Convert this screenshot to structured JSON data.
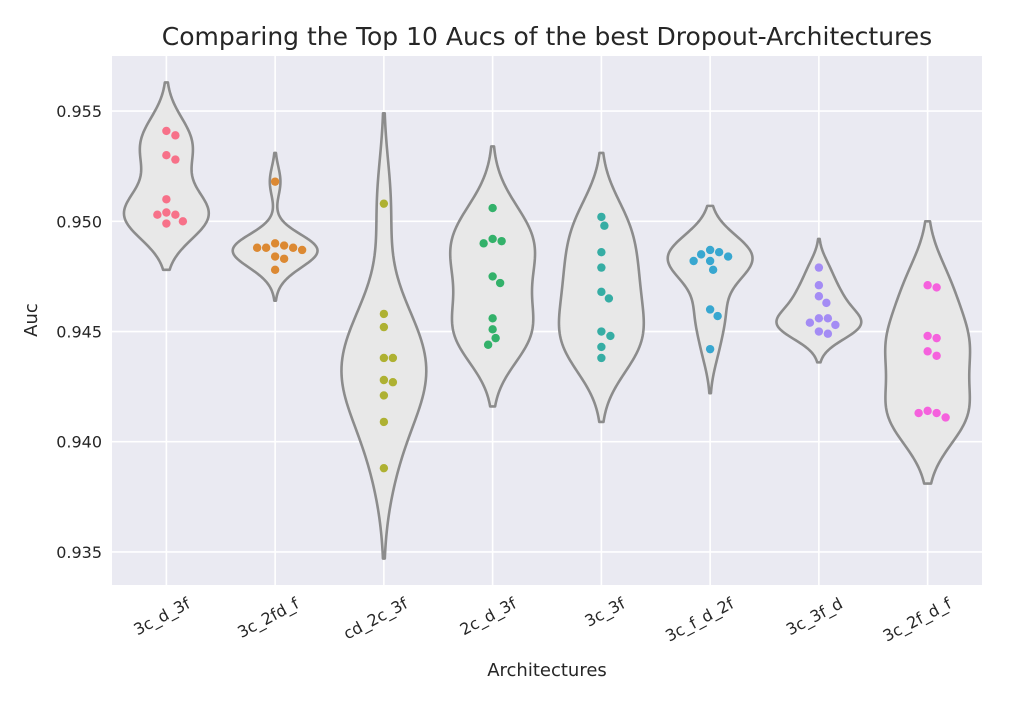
{
  "chart_data": {
    "type": "violin",
    "title": "Comparing the Top 10 Aucs of the best Dropout-Architectures",
    "xlabel": "Architectures",
    "ylabel": "Auc",
    "ylim": [
      0.9335,
      0.9575
    ],
    "yticks": [
      "0.935",
      "0.940",
      "0.945",
      "0.950",
      "0.955"
    ],
    "grid": true,
    "categories": [
      "3c_d_3f",
      "3c_2fd_f",
      "cd_2c_3f",
      "2c_d_3f",
      "3c_3f",
      "3c_f_d_2f",
      "3c_3f_d",
      "3c_2f_d_f"
    ],
    "series": [
      {
        "category": "3c_d_3f",
        "color": "#f77189",
        "violin_range": [
          0.9478,
          0.9563
        ],
        "values": [
          0.9541,
          0.9539,
          0.953,
          0.9528,
          0.951,
          0.9504,
          0.9503,
          0.9503,
          0.95,
          0.9499
        ]
      },
      {
        "category": "3c_2fd_f",
        "color": "#dc8932",
        "violin_range": [
          0.9464,
          0.9531
        ],
        "values": [
          0.9518,
          0.949,
          0.9489,
          0.9488,
          0.9488,
          0.9488,
          0.9487,
          0.9484,
          0.9483,
          0.9478
        ]
      },
      {
        "category": "cd_2c_3f",
        "color": "#aeb132",
        "violin_range": [
          0.9347,
          0.9549
        ],
        "values": [
          0.9508,
          0.9458,
          0.9452,
          0.9438,
          0.9438,
          0.9428,
          0.9427,
          0.9421,
          0.9409,
          0.9388
        ]
      },
      {
        "category": "2c_d_3f",
        "color": "#33b16a",
        "violin_range": [
          0.9416,
          0.9534
        ],
        "values": [
          0.9506,
          0.9492,
          0.9491,
          0.949,
          0.9475,
          0.9472,
          0.9456,
          0.9451,
          0.9447,
          0.9444
        ]
      },
      {
        "category": "3c_3f",
        "color": "#36ada4",
        "violin_range": [
          0.9409,
          0.9531
        ],
        "values": [
          0.9502,
          0.9498,
          0.9486,
          0.9479,
          0.9468,
          0.9465,
          0.945,
          0.9448,
          0.9443,
          0.9438
        ]
      },
      {
        "category": "3c_f_d_2f",
        "color": "#38a7d0",
        "violin_range": [
          0.9422,
          0.9507
        ],
        "values": [
          0.9487,
          0.9486,
          0.9485,
          0.9484,
          0.9482,
          0.9482,
          0.9478,
          0.946,
          0.9457,
          0.9442
        ]
      },
      {
        "category": "3c_3f_d",
        "color": "#a48cf4",
        "violin_range": [
          0.9436,
          0.9492
        ],
        "values": [
          0.9479,
          0.9471,
          0.9466,
          0.9463,
          0.9456,
          0.9456,
          0.9454,
          0.9453,
          0.945,
          0.9449
        ]
      },
      {
        "category": "3c_2f_d_f",
        "color": "#f561dd",
        "violin_range": [
          0.9381,
          0.95
        ],
        "values": [
          0.9471,
          0.947,
          0.9448,
          0.9447,
          0.9441,
          0.9439,
          0.9414,
          0.9413,
          0.9413,
          0.9411
        ]
      }
    ]
  }
}
